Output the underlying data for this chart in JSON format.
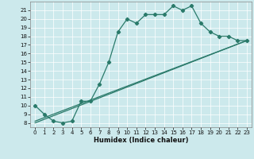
{
  "xlabel": "Humidex (Indice chaleur)",
  "bg_color": "#cce9ec",
  "line_color": "#2a7a6a",
  "xlim": [
    -0.5,
    23.5
  ],
  "ylim": [
    7.5,
    22.0
  ],
  "xticks": [
    0,
    1,
    2,
    3,
    4,
    5,
    6,
    7,
    8,
    9,
    10,
    11,
    12,
    13,
    14,
    15,
    16,
    17,
    18,
    19,
    20,
    21,
    22,
    23
  ],
  "yticks": [
    8,
    9,
    10,
    11,
    12,
    13,
    14,
    15,
    16,
    17,
    18,
    19,
    20,
    21
  ],
  "line1_x": [
    0,
    1,
    2,
    3,
    4,
    5,
    6,
    7,
    8,
    9,
    10,
    11,
    12,
    13,
    14,
    15,
    16,
    17,
    18,
    19,
    20,
    21,
    22,
    23
  ],
  "line1_y": [
    10,
    9,
    8.2,
    8.0,
    8.2,
    10.5,
    10.5,
    12.5,
    15.0,
    18.5,
    20.0,
    19.5,
    20.5,
    20.5,
    20.5,
    21.5,
    21.0,
    21.5,
    19.5,
    18.5,
    18.0,
    18.0,
    17.5,
    17.5
  ],
  "line2_x": [
    0,
    23
  ],
  "line2_y": [
    8.0,
    17.5
  ],
  "line3_x": [
    0,
    23
  ],
  "line3_y": [
    8.2,
    17.5
  ],
  "marker": "D",
  "markersize": 2.2,
  "linewidth": 0.9
}
